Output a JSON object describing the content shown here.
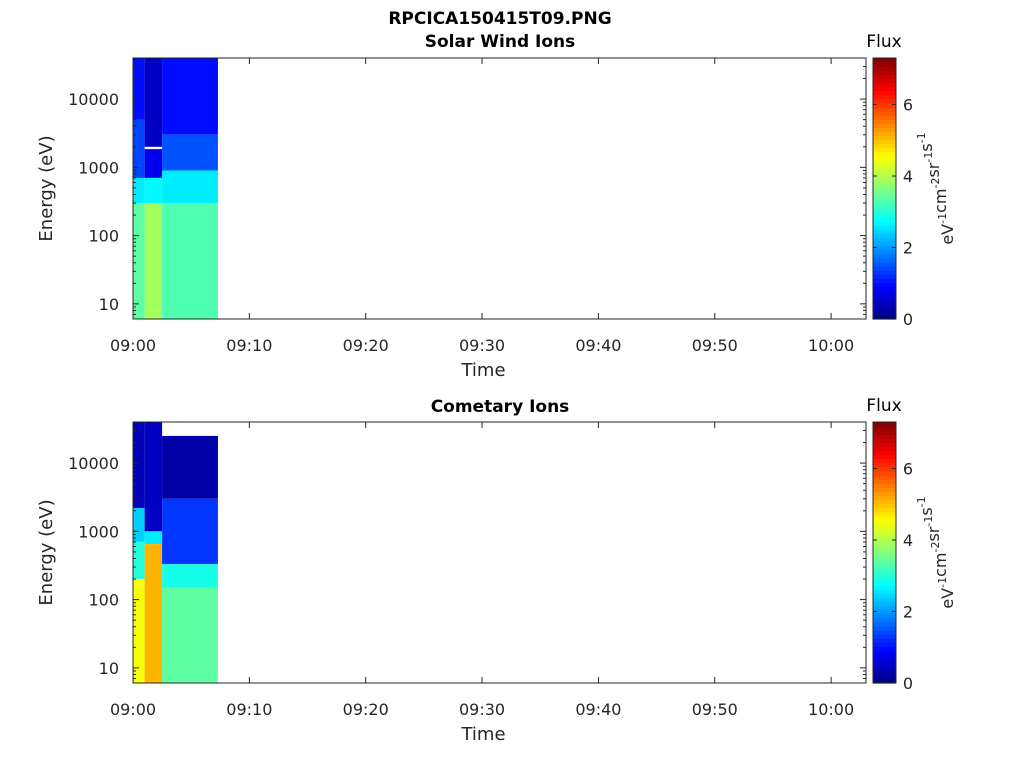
{
  "figure": {
    "title": "RPCICA150415T09.PNG"
  },
  "chart_data": [
    {
      "type": "heatmap",
      "title": "Solar Wind Ions",
      "xlabel": "Time",
      "ylabel": "Energy (eV)",
      "x_ticks": [
        "09:00",
        "09:10",
        "09:20",
        "09:30",
        "09:40",
        "09:50",
        "10:00"
      ],
      "x_range": [
        "09:00",
        "10:03"
      ],
      "y_scale": "log",
      "y_ticks": [
        "10",
        "100",
        "1000",
        "10000"
      ],
      "y_range": [
        6,
        40000
      ],
      "colorbar": {
        "title": "Flux",
        "unit": "eV-1cm-2sr-1s-1",
        "ticks": [
          "0",
          "2",
          "4",
          "6"
        ],
        "range": [
          0,
          7.3
        ],
        "colormap": "jet"
      },
      "columns": [
        {
          "t_start": "09:00",
          "t_end": "09:01",
          "bands": [
            {
              "e_min": 40000,
              "e_max": 5000,
              "flux": 1.0
            },
            {
              "e_min": 5000,
              "e_max": 700,
              "flux": 1.4
            },
            {
              "e_min": 700,
              "e_max": 300,
              "flux": 2.6
            },
            {
              "e_min": 300,
              "e_max": 6,
              "flux": 3.4
            }
          ]
        },
        {
          "t_start": "09:01",
          "t_end": "09:02.5",
          "bands": [
            {
              "e_min": 40000,
              "e_max": 2000,
              "flux": 0.5
            },
            {
              "e_min": 2000,
              "e_max": 1850,
              "flux": null
            },
            {
              "e_min": 1850,
              "e_max": 700,
              "flux": 0.8
            },
            {
              "e_min": 700,
              "e_max": 300,
              "flux": 2.7
            },
            {
              "e_min": 300,
              "e_max": 6,
              "flux": 3.9
            }
          ]
        },
        {
          "t_start": "09:02.5",
          "t_end": "09:07.3",
          "bands": [
            {
              "e_min": 40000,
              "e_max": 3000,
              "flux": 1.0
            },
            {
              "e_min": 3000,
              "e_max": 900,
              "flux": 1.5
            },
            {
              "e_min": 900,
              "e_max": 300,
              "flux": 2.6
            },
            {
              "e_min": 300,
              "e_max": 6,
              "flux": 3.3
            }
          ]
        }
      ]
    },
    {
      "type": "heatmap",
      "title": "Cometary Ions",
      "xlabel": "Time",
      "ylabel": "Energy (eV)",
      "x_ticks": [
        "09:00",
        "09:10",
        "09:20",
        "09:30",
        "09:40",
        "09:50",
        "10:00"
      ],
      "x_range": [
        "09:00",
        "10:03"
      ],
      "y_scale": "log",
      "y_ticks": [
        "10",
        "100",
        "1000",
        "10000"
      ],
      "y_range": [
        6,
        40000
      ],
      "colorbar": {
        "title": "Flux",
        "unit": "eV-1cm-2sr-1s-1",
        "ticks": [
          "0",
          "2",
          "4",
          "6"
        ],
        "range": [
          0,
          7.3
        ],
        "colormap": "jet"
      },
      "columns": [
        {
          "t_start": "09:00",
          "t_end": "09:01",
          "bands": [
            {
              "e_min": 40000,
              "e_max": 2200,
              "flux": 0.4
            },
            {
              "e_min": 2200,
              "e_max": 700,
              "flux": 2.4
            },
            {
              "e_min": 700,
              "e_max": 200,
              "flux": 3.0
            },
            {
              "e_min": 200,
              "e_max": 6,
              "flux": 4.5
            }
          ]
        },
        {
          "t_start": "09:01",
          "t_end": "09:02.5",
          "bands": [
            {
              "e_min": 40000,
              "e_max": 1000,
              "flux": 0.5
            },
            {
              "e_min": 1000,
              "e_max": 650,
              "flux": 2.6
            },
            {
              "e_min": 650,
              "e_max": 6,
              "flux": 5.1
            }
          ]
        },
        {
          "t_start": "09:02.5",
          "t_end": "09:07.3",
          "bands": [
            {
              "e_min": 25000,
              "e_max": 3000,
              "flux": 0.3
            },
            {
              "e_min": 3000,
              "e_max": 330,
              "flux": 1.3
            },
            {
              "e_min": 330,
              "e_max": 150,
              "flux": 2.9
            },
            {
              "e_min": 150,
              "e_max": 6,
              "flux": 3.4
            }
          ]
        }
      ]
    }
  ]
}
